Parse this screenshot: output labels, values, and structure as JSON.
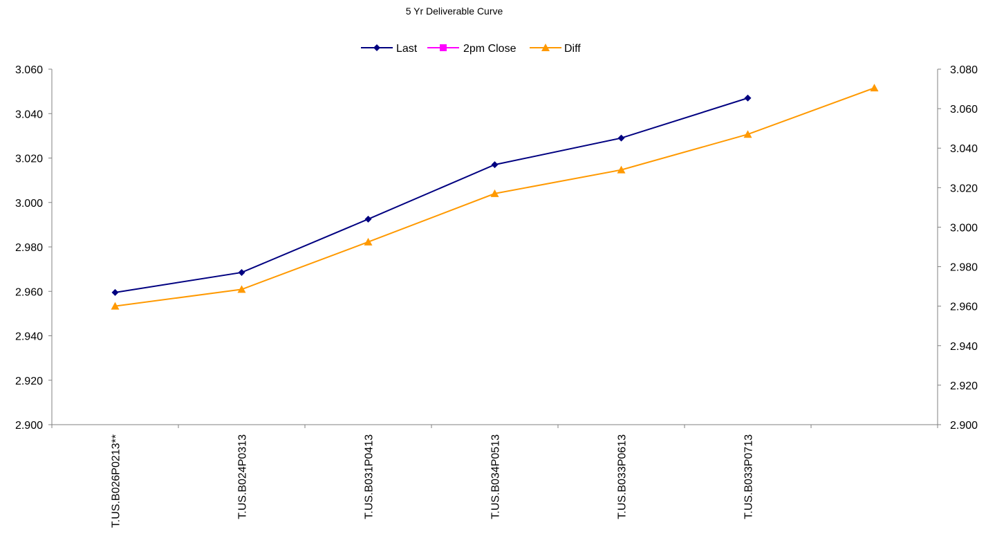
{
  "chart_data": {
    "type": "line",
    "title": "5 Yr Deliverable Curve",
    "categories": [
      "T.US.B026P0213**",
      "T.US.B024P0313",
      "T.US.B031P0413",
      "T.US.B034P0513",
      "T.US.B033P0613",
      "T.US.B033P0713",
      ""
    ],
    "y_left": {
      "range": [
        2.9,
        3.06
      ],
      "ticks": [
        "2.900",
        "2.920",
        "2.940",
        "2.960",
        "2.980",
        "3.000",
        "3.020",
        "3.040",
        "3.060"
      ]
    },
    "y_right": {
      "range": [
        2.9,
        3.08
      ],
      "ticks": [
        "2.900",
        "2.920",
        "2.940",
        "2.960",
        "2.980",
        "3.000",
        "3.020",
        "3.040",
        "3.060",
        "3.080"
      ]
    },
    "legend_position": "top-center",
    "grid": false,
    "series": [
      {
        "name": "Last",
        "axis": "left",
        "color": "#000080",
        "marker": "diamond",
        "values": [
          2.9595,
          2.9685,
          2.9925,
          3.017,
          3.029,
          3.047,
          null
        ]
      },
      {
        "name": "2pm Close",
        "axis": "left",
        "color": "#ff00ff",
        "marker": "square",
        "values": [
          null,
          null,
          null,
          null,
          null,
          null,
          null
        ]
      },
      {
        "name": "Diff",
        "axis": "right",
        "color": "#ff9900",
        "marker": "triangle",
        "values": [
          2.96,
          2.9685,
          2.9925,
          3.017,
          3.029,
          3.047,
          3.0705
        ]
      }
    ]
  }
}
